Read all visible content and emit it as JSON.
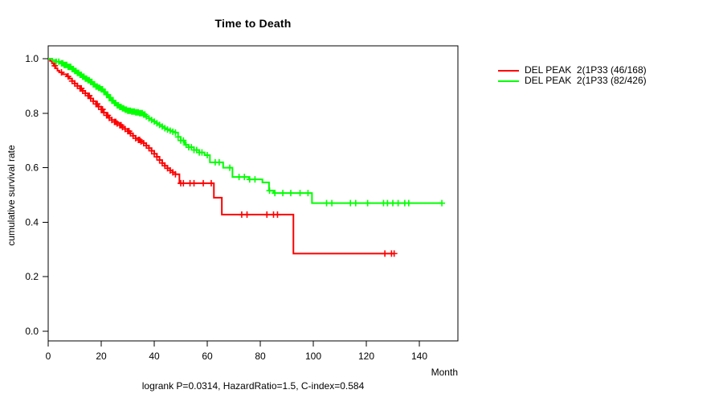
{
  "chart_data": {
    "type": "line",
    "variant": "kaplan-meier-step",
    "title": "Time to Death",
    "xlabel": "Month",
    "ylabel": "cumulative survival rate",
    "footnote": "logrank P=0.0314, HazardRatio=1.5, C-index=0.584",
    "xlim": [
      0,
      154.5
    ],
    "ylim": [
      0.0,
      1.0
    ],
    "xticks": [
      0,
      20,
      40,
      60,
      80,
      100,
      120,
      140
    ],
    "yticks": [
      "0.0",
      "0.2",
      "0.4",
      "0.6",
      "0.8",
      "1.0"
    ],
    "grid": false,
    "legend_position": "right-outside",
    "series": [
      {
        "name": "DEL PEAK  2(1P33 (46/168)",
        "color": "#ff0000",
        "end_month": 130.5,
        "steps": [
          [
            0,
            1.0
          ],
          [
            0.7,
            0.992
          ],
          [
            1.4,
            0.983
          ],
          [
            2.1,
            0.974
          ],
          [
            2.8,
            0.965
          ],
          [
            3.5,
            0.956
          ],
          [
            4.2,
            0.95
          ],
          [
            5.5,
            0.943
          ],
          [
            7,
            0.935
          ],
          [
            8,
            0.927
          ],
          [
            9,
            0.918
          ],
          [
            10,
            0.909
          ],
          [
            11,
            0.9
          ],
          [
            12,
            0.891
          ],
          [
            13,
            0.882
          ],
          [
            14,
            0.873
          ],
          [
            15,
            0.864
          ],
          [
            16,
            0.854
          ],
          [
            17,
            0.844
          ],
          [
            18,
            0.834
          ],
          [
            19,
            0.824
          ],
          [
            20,
            0.814
          ],
          [
            21,
            0.802
          ],
          [
            22,
            0.792
          ],
          [
            23,
            0.783
          ],
          [
            24,
            0.775
          ],
          [
            25,
            0.768
          ],
          [
            26,
            0.762
          ],
          [
            27,
            0.756
          ],
          [
            28,
            0.749
          ],
          [
            29,
            0.742
          ],
          [
            30,
            0.734
          ],
          [
            31,
            0.726
          ],
          [
            32,
            0.717
          ],
          [
            33,
            0.708
          ],
          [
            34,
            0.702
          ],
          [
            35,
            0.696
          ],
          [
            36,
            0.69
          ],
          [
            37,
            0.681
          ],
          [
            38,
            0.672
          ],
          [
            39,
            0.662
          ],
          [
            40,
            0.651
          ],
          [
            41,
            0.64
          ],
          [
            42,
            0.628
          ],
          [
            43,
            0.617
          ],
          [
            44,
            0.607
          ],
          [
            45,
            0.598
          ],
          [
            46,
            0.59
          ],
          [
            47,
            0.583
          ],
          [
            48,
            0.576
          ],
          [
            49.5,
            0.543
          ],
          [
            62.5,
            0.49
          ],
          [
            65.5,
            0.428
          ],
          [
            92.5,
            0.285
          ]
        ],
        "censor_months": [
          2.5,
          5,
          7.5,
          9,
          10,
          11,
          12,
          12.5,
          13,
          14,
          15,
          15.5,
          16,
          17,
          18,
          18.5,
          19,
          20,
          20.5,
          21,
          22,
          22.5,
          23,
          24,
          25,
          25.5,
          26,
          27,
          27.5,
          28,
          29,
          30,
          30.5,
          31,
          32,
          33,
          34,
          34.5,
          35,
          36,
          37,
          38,
          39,
          40,
          41,
          42,
          43,
          44,
          45,
          46,
          47,
          48,
          50,
          51,
          53.5,
          55,
          58.5,
          61.5,
          73,
          75,
          82.5,
          85,
          86.5,
          127,
          129.5,
          130.5
        ]
      },
      {
        "name": "DEL PEAK  2(1P33 (82/426)",
        "color": "#00ff00",
        "end_month": 148.5,
        "steps": [
          [
            0,
            1.0
          ],
          [
            1.5,
            0.995
          ],
          [
            3,
            0.989
          ],
          [
            4.5,
            0.983
          ],
          [
            6,
            0.977
          ],
          [
            7.5,
            0.97
          ],
          [
            9,
            0.962
          ],
          [
            10,
            0.955
          ],
          [
            11,
            0.948
          ],
          [
            12,
            0.941
          ],
          [
            13,
            0.934
          ],
          [
            14,
            0.927
          ],
          [
            15,
            0.921
          ],
          [
            16,
            0.915
          ],
          [
            17,
            0.906
          ],
          [
            18,
            0.898
          ],
          [
            19,
            0.893
          ],
          [
            20,
            0.888
          ],
          [
            21,
            0.878
          ],
          [
            22,
            0.868
          ],
          [
            23,
            0.857
          ],
          [
            24,
            0.846
          ],
          [
            25,
            0.837
          ],
          [
            26,
            0.829
          ],
          [
            27,
            0.823
          ],
          [
            28,
            0.818
          ],
          [
            29,
            0.813
          ],
          [
            30,
            0.809
          ],
          [
            31.5,
            0.806
          ],
          [
            33,
            0.803
          ],
          [
            34.5,
            0.8
          ],
          [
            36,
            0.795
          ],
          [
            37,
            0.788
          ],
          [
            38,
            0.781
          ],
          [
            39,
            0.775
          ],
          [
            40,
            0.769
          ],
          [
            41,
            0.763
          ],
          [
            42,
            0.757
          ],
          [
            43,
            0.751
          ],
          [
            44,
            0.745
          ],
          [
            45,
            0.74
          ],
          [
            46,
            0.736
          ],
          [
            47,
            0.732
          ],
          [
            48,
            0.729
          ],
          [
            49,
            0.713
          ],
          [
            50,
            0.7
          ],
          [
            51.5,
            0.684
          ],
          [
            53,
            0.675
          ],
          [
            55,
            0.665
          ],
          [
            57,
            0.656
          ],
          [
            59,
            0.646
          ],
          [
            61,
            0.62
          ],
          [
            66,
            0.6
          ],
          [
            69.5,
            0.566
          ],
          [
            75.8,
            0.557
          ],
          [
            80.8,
            0.546
          ],
          [
            83.3,
            0.516
          ],
          [
            85,
            0.507
          ],
          [
            99.5,
            0.47
          ]
        ],
        "censor_months": [
          3,
          4,
          5,
          5.5,
          6,
          6.5,
          7,
          7.5,
          8,
          8.5,
          9,
          9.5,
          10,
          10.5,
          11,
          11.5,
          12,
          12.5,
          13,
          13.5,
          14,
          14.5,
          15,
          15.5,
          16,
          16.5,
          17,
          17.5,
          18,
          18.5,
          19,
          19.5,
          20,
          20.5,
          21,
          21.5,
          22,
          22.5,
          23,
          23.5,
          24,
          24.5,
          25,
          25.5,
          26,
          26.5,
          27,
          27.5,
          28,
          28.5,
          29,
          29.5,
          30,
          30.5,
          31,
          31.5,
          32,
          32.5,
          33,
          33.5,
          34,
          34.5,
          35,
          35.5,
          36,
          36.5,
          37,
          38,
          39,
          40,
          41,
          42,
          43,
          44,
          45,
          46,
          47,
          48,
          49,
          50,
          51,
          52,
          53,
          54,
          55,
          56,
          57,
          58,
          60,
          63,
          64.5,
          68.5,
          72,
          74,
          76,
          78,
          83.5,
          85.5,
          88.5,
          91.5,
          95,
          98,
          105,
          107,
          114,
          116,
          120.5,
          126.5,
          128,
          130,
          132,
          134.5,
          136,
          148.5
        ]
      }
    ]
  }
}
